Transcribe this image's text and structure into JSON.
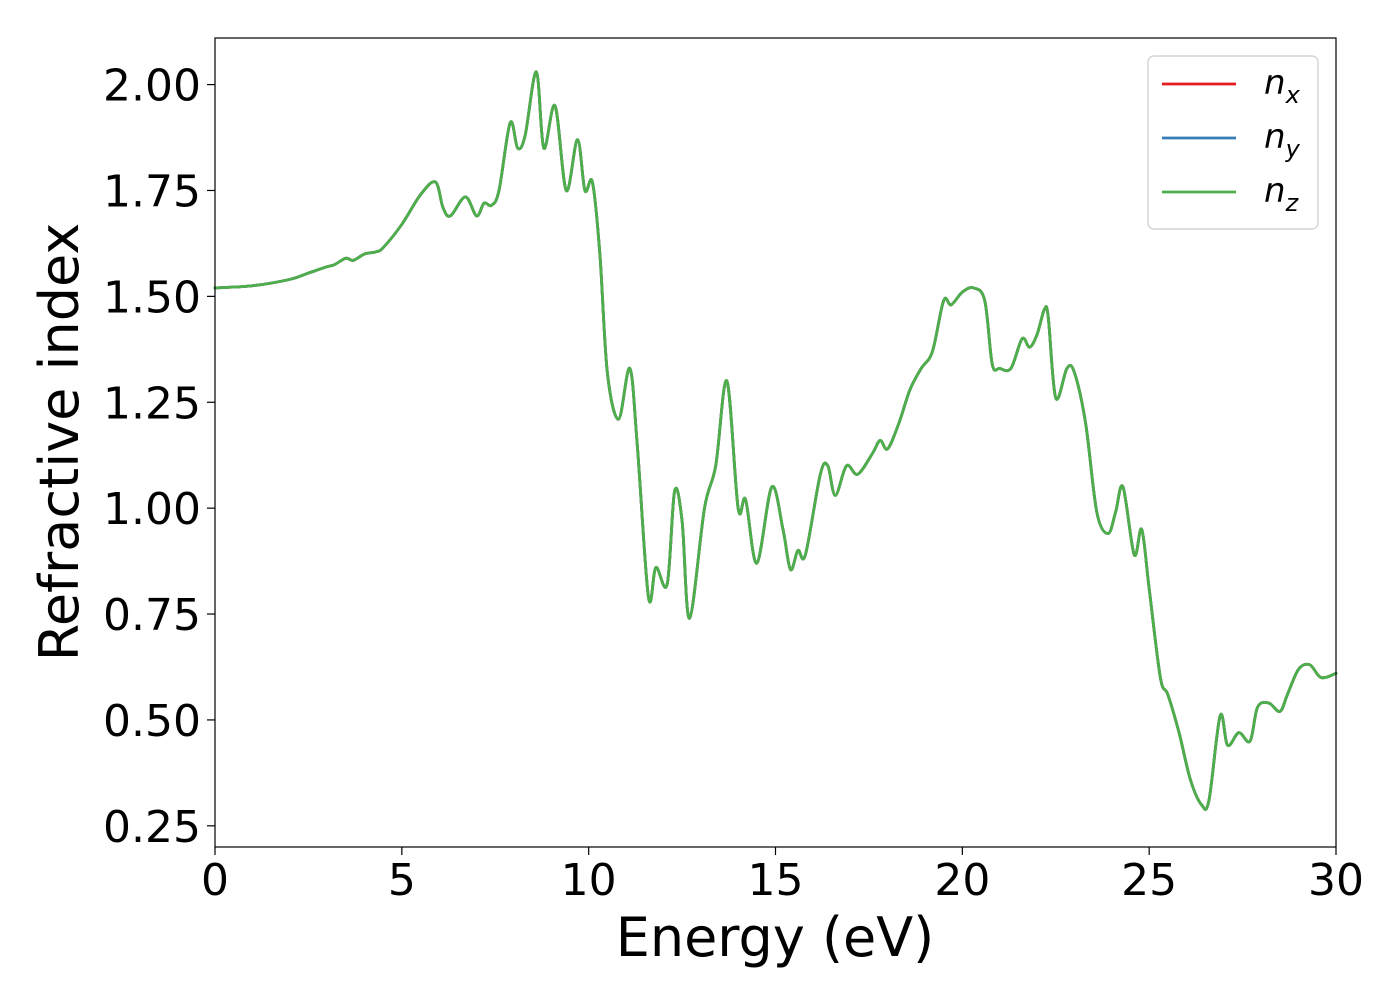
{
  "chart_data": {
    "type": "line",
    "xlabel": "Energy (eV)",
    "ylabel": "Refractive index",
    "xlim": [
      0,
      30
    ],
    "ylim": [
      0.2,
      2.11
    ],
    "xticks": [
      0,
      5,
      10,
      15,
      20,
      25,
      30
    ],
    "xtick_labels": [
      "0",
      "5",
      "10",
      "15",
      "20",
      "25",
      "30"
    ],
    "yticks": [
      0.25,
      0.5,
      0.75,
      1.0,
      1.25,
      1.5,
      1.75,
      2.0
    ],
    "ytick_labels": [
      "0.25",
      "0.50",
      "0.75",
      "1.00",
      "1.25",
      "1.50",
      "1.75",
      "2.00"
    ],
    "grid": false,
    "legend_position": "top-right",
    "x": [
      0,
      1,
      2,
      2.5,
      3,
      3.2,
      3.5,
      3.7,
      4,
      4.3,
      4.5,
      5,
      5.5,
      5.9,
      6.1,
      6.3,
      6.7,
      7,
      7.2,
      7.4,
      7.6,
      7.9,
      8.1,
      8.3,
      8.6,
      8.8,
      9.1,
      9.4,
      9.7,
      9.9,
      10.1,
      10.3,
      10.5,
      10.8,
      11.1,
      11.3,
      11.6,
      11.8,
      12.1,
      12.3,
      12.5,
      12.7,
      13.1,
      13.4,
      13.7,
      14.0,
      14.2,
      14.5,
      14.9,
      15.2,
      15.4,
      15.6,
      15.8,
      16.2,
      16.4,
      16.6,
      16.9,
      17.2,
      17.6,
      17.8,
      18.0,
      18.3,
      18.6,
      18.9,
      19.2,
      19.5,
      19.7,
      20.0,
      20.3,
      20.6,
      20.8,
      21.0,
      21.3,
      21.6,
      21.8,
      22.0,
      22.2,
      22.3,
      22.5,
      22.8,
      23.0,
      23.3,
      23.6,
      23.9,
      24.1,
      24.3,
      24.6,
      24.8,
      25.0,
      25.3,
      25.5,
      25.8,
      26.1,
      26.4,
      26.6,
      26.9,
      27.1,
      27.4,
      27.7,
      27.9,
      28.2,
      28.5,
      28.7,
      29.0,
      29.3,
      29.6,
      30.0
    ],
    "series": [
      {
        "name": "nx",
        "color": "#e41a1c",
        "y": [
          1.52,
          1.525,
          1.54,
          1.555,
          1.57,
          1.575,
          1.59,
          1.585,
          1.6,
          1.605,
          1.615,
          1.67,
          1.74,
          1.77,
          1.71,
          1.69,
          1.735,
          1.69,
          1.72,
          1.715,
          1.75,
          1.91,
          1.85,
          1.88,
          2.03,
          1.85,
          1.95,
          1.75,
          1.87,
          1.75,
          1.77,
          1.6,
          1.32,
          1.21,
          1.33,
          1.15,
          0.79,
          0.86,
          0.82,
          1.04,
          0.97,
          0.74,
          1.0,
          1.1,
          1.3,
          1.0,
          1.02,
          0.87,
          1.05,
          0.95,
          0.855,
          0.9,
          0.89,
          1.08,
          1.1,
          1.03,
          1.1,
          1.08,
          1.13,
          1.16,
          1.14,
          1.2,
          1.28,
          1.33,
          1.37,
          1.49,
          1.48,
          1.51,
          1.52,
          1.49,
          1.34,
          1.33,
          1.33,
          1.4,
          1.38,
          1.41,
          1.47,
          1.45,
          1.26,
          1.33,
          1.32,
          1.2,
          0.99,
          0.94,
          0.99,
          1.05,
          0.89,
          0.95,
          0.81,
          0.6,
          0.56,
          0.47,
          0.36,
          0.3,
          0.31,
          0.51,
          0.44,
          0.47,
          0.45,
          0.53,
          0.54,
          0.52,
          0.56,
          0.62,
          0.63,
          0.6,
          0.61
        ]
      },
      {
        "name": "ny",
        "color": "#377eb8",
        "y": [
          1.52,
          1.525,
          1.54,
          1.555,
          1.57,
          1.575,
          1.59,
          1.585,
          1.6,
          1.605,
          1.615,
          1.67,
          1.74,
          1.77,
          1.71,
          1.69,
          1.735,
          1.69,
          1.72,
          1.715,
          1.75,
          1.91,
          1.85,
          1.88,
          2.03,
          1.85,
          1.95,
          1.75,
          1.87,
          1.75,
          1.77,
          1.6,
          1.32,
          1.21,
          1.33,
          1.15,
          0.79,
          0.86,
          0.82,
          1.04,
          0.97,
          0.74,
          1.0,
          1.1,
          1.3,
          1.0,
          1.02,
          0.87,
          1.05,
          0.95,
          0.855,
          0.9,
          0.89,
          1.08,
          1.1,
          1.03,
          1.1,
          1.08,
          1.13,
          1.16,
          1.14,
          1.2,
          1.28,
          1.33,
          1.37,
          1.49,
          1.48,
          1.51,
          1.52,
          1.49,
          1.34,
          1.33,
          1.33,
          1.4,
          1.38,
          1.41,
          1.47,
          1.45,
          1.26,
          1.33,
          1.32,
          1.2,
          0.99,
          0.94,
          0.99,
          1.05,
          0.89,
          0.95,
          0.81,
          0.6,
          0.56,
          0.47,
          0.36,
          0.3,
          0.31,
          0.51,
          0.44,
          0.47,
          0.45,
          0.53,
          0.54,
          0.52,
          0.56,
          0.62,
          0.63,
          0.6,
          0.61
        ]
      },
      {
        "name": "nz",
        "color": "#4daf4a",
        "y": [
          1.52,
          1.525,
          1.54,
          1.555,
          1.57,
          1.575,
          1.59,
          1.585,
          1.6,
          1.605,
          1.615,
          1.67,
          1.74,
          1.77,
          1.71,
          1.69,
          1.735,
          1.69,
          1.72,
          1.715,
          1.75,
          1.91,
          1.85,
          1.88,
          2.03,
          1.85,
          1.95,
          1.75,
          1.87,
          1.75,
          1.77,
          1.6,
          1.32,
          1.21,
          1.33,
          1.15,
          0.79,
          0.86,
          0.82,
          1.04,
          0.97,
          0.74,
          1.0,
          1.1,
          1.3,
          1.0,
          1.02,
          0.87,
          1.05,
          0.95,
          0.855,
          0.9,
          0.89,
          1.08,
          1.1,
          1.03,
          1.1,
          1.08,
          1.13,
          1.16,
          1.14,
          1.2,
          1.28,
          1.33,
          1.37,
          1.49,
          1.48,
          1.51,
          1.52,
          1.49,
          1.34,
          1.33,
          1.33,
          1.4,
          1.38,
          1.41,
          1.47,
          1.45,
          1.26,
          1.33,
          1.32,
          1.2,
          0.99,
          0.94,
          0.99,
          1.05,
          0.89,
          0.95,
          0.81,
          0.6,
          0.56,
          0.47,
          0.36,
          0.3,
          0.31,
          0.51,
          0.44,
          0.47,
          0.45,
          0.53,
          0.54,
          0.52,
          0.56,
          0.62,
          0.63,
          0.6,
          0.61
        ]
      }
    ],
    "legend": [
      {
        "base": "n",
        "sub": "x",
        "color": "#e41a1c"
      },
      {
        "base": "n",
        "sub": "y",
        "color": "#377eb8"
      },
      {
        "base": "n",
        "sub": "z",
        "color": "#4daf4a"
      }
    ]
  }
}
